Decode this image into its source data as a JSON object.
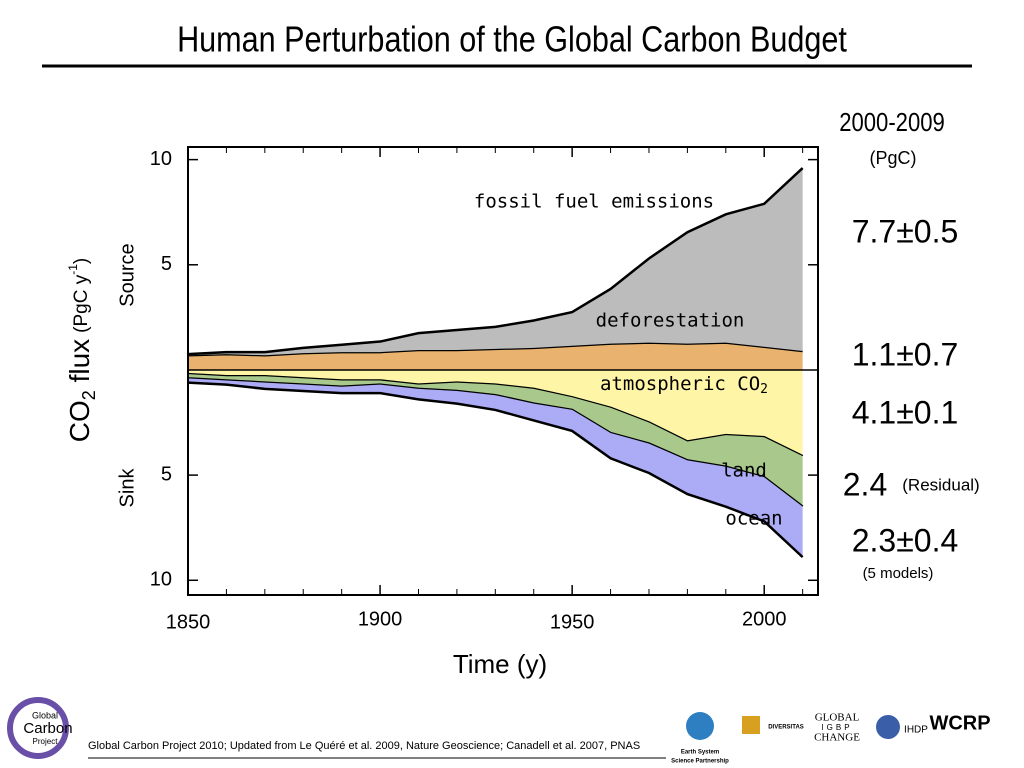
{
  "chart_data": {
    "type": "stacked_area",
    "title": "Human Perturbation of the Global Carbon Budget",
    "xlabel": "Time (y)",
    "ylabel": {
      "main": "CO",
      "sub": "2",
      "rest": " flux",
      "unit": "(PgC y",
      "sup": "-1",
      "close": ")"
    },
    "source_label": "Source",
    "sink_label": "Sink",
    "x": [
      1850,
      1860,
      1870,
      1880,
      1890,
      1900,
      1910,
      1920,
      1930,
      1940,
      1950,
      1960,
      1970,
      1980,
      1990,
      2000,
      2010
    ],
    "xlim": [
      1850,
      2014
    ],
    "xticks": [
      1850,
      1900,
      1950,
      2000
    ],
    "xminorticks": [
      1860,
      1870,
      1880,
      1890,
      1910,
      1920,
      1930,
      1940,
      1960,
      1970,
      1980,
      1990,
      2010
    ],
    "ylim": [
      -10.7,
      10.6
    ],
    "yticks": [
      10,
      5,
      {
        "value": -5,
        "label": "5"
      },
      {
        "value": -10,
        "label": "10"
      }
    ],
    "series": [
      {
        "name": "deforestation",
        "color": "#e9b36f",
        "stack": "source",
        "values": [
          0.7,
          0.75,
          0.7,
          0.8,
          0.85,
          0.85,
          0.95,
          0.95,
          1.0,
          1.05,
          1.15,
          1.25,
          1.3,
          1.25,
          1.3,
          1.1,
          0.9
        ]
      },
      {
        "name": "fossil fuel emissions",
        "color": "#bcbcbc",
        "stack": "source",
        "values": [
          0.05,
          0.1,
          0.15,
          0.25,
          0.35,
          0.5,
          0.8,
          0.95,
          1.05,
          1.3,
          1.6,
          2.6,
          4.0,
          5.3,
          6.1,
          6.8,
          8.7
        ]
      },
      {
        "name": "atmospheric CO",
        "name_sub": "2",
        "color": "#fff5a6",
        "stack": "sink",
        "values": [
          -0.2,
          -0.3,
          -0.3,
          -0.4,
          -0.5,
          -0.5,
          -0.7,
          -0.6,
          -0.7,
          -0.9,
          -1.3,
          -1.8,
          -2.5,
          -3.4,
          -3.1,
          -3.2,
          -4.1
        ]
      },
      {
        "name": "land",
        "color": "#a8c98b",
        "stack": "sink",
        "values": [
          -0.2,
          -0.2,
          -0.3,
          -0.3,
          -0.3,
          -0.2,
          -0.2,
          -0.4,
          -0.5,
          -0.7,
          -0.6,
          -1.2,
          -1.0,
          -0.9,
          -1.5,
          -1.9,
          -2.4
        ]
      },
      {
        "name": "ocean",
        "color": "#acacf6",
        "stack": "sink",
        "values": [
          -0.2,
          -0.2,
          -0.3,
          -0.3,
          -0.3,
          -0.4,
          -0.5,
          -0.6,
          -0.7,
          -0.8,
          -1.0,
          -1.2,
          -1.4,
          -1.6,
          -1.9,
          -2.1,
          -2.4
        ]
      }
    ],
    "budget_header": "2000-2009",
    "budget_unit": "(PgC)",
    "budget": [
      "7.7±0.5",
      "1.1±0.7",
      "4.1±0.1",
      "2.4",
      "2.3±0.4"
    ],
    "residual_note": "(Residual)",
    "models_note": "(5 models)"
  },
  "footer": {
    "logo": [
      "Global",
      "Carbon",
      "Project"
    ],
    "citation": "Global Carbon Project 2010; Updated from Le Quéré et al. 2009, Nature Geoscience; Canadell et al. 2007, PNAS",
    "partners": [
      "Earth System",
      "Science Partnership",
      "DIVERSITAS",
      "GLOBAL",
      "IGBP",
      "CHANGE",
      "IHDP",
      "WCRP"
    ]
  }
}
